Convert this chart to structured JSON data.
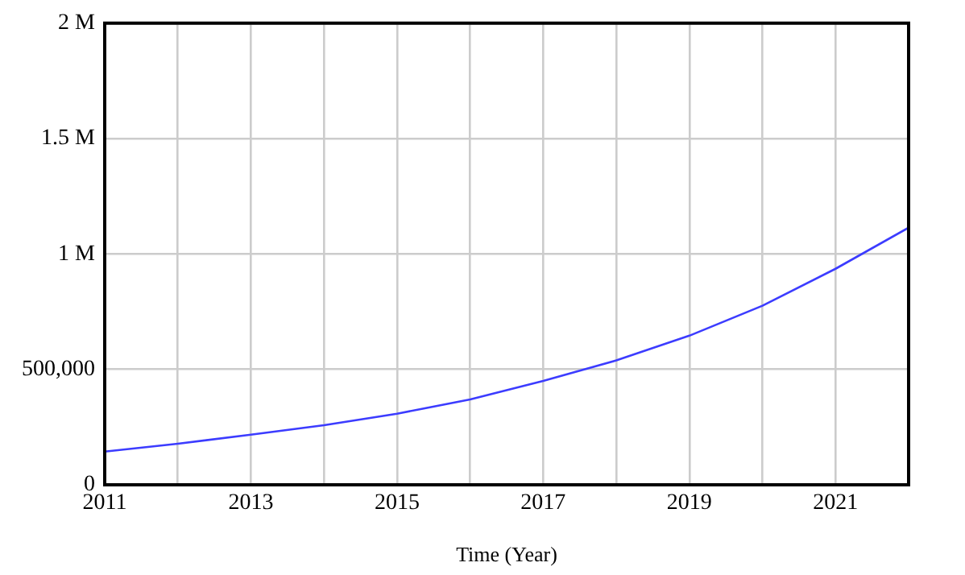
{
  "chart_data": {
    "type": "line",
    "xlabel": "Time (Year)",
    "x": [
      2011,
      2012,
      2013,
      2014,
      2015,
      2016,
      2017,
      2018,
      2019,
      2020,
      2021,
      2022
    ],
    "series": [
      {
        "color": "#3c3cff",
        "values": [
          144000,
          178000,
          217000,
          258000,
          308000,
          370000,
          450000,
          539000,
          646000,
          776000,
          936000,
          1114000
        ]
      }
    ],
    "xlim": [
      2011,
      2022
    ],
    "xticks": [
      2011,
      {
        "value": 2012,
        "label": null
      },
      2013,
      {
        "value": 2014,
        "label": null
      },
      2015,
      {
        "value": 2016,
        "label": null
      },
      2017,
      {
        "value": 2018,
        "label": null
      },
      2019,
      {
        "value": 2020,
        "label": null
      },
      2021
    ],
    "ylim": [
      0,
      2000000
    ],
    "yticks": [
      0,
      {
        "value": 500000,
        "label": "500,000"
      },
      {
        "value": 1000000,
        "label": "1 M"
      },
      {
        "value": 1500000,
        "label": "1.5 M"
      },
      {
        "value": 2000000,
        "label": "2 M"
      }
    ],
    "grid": true,
    "legend": false,
    "marker": "none",
    "line_style": "solid"
  }
}
